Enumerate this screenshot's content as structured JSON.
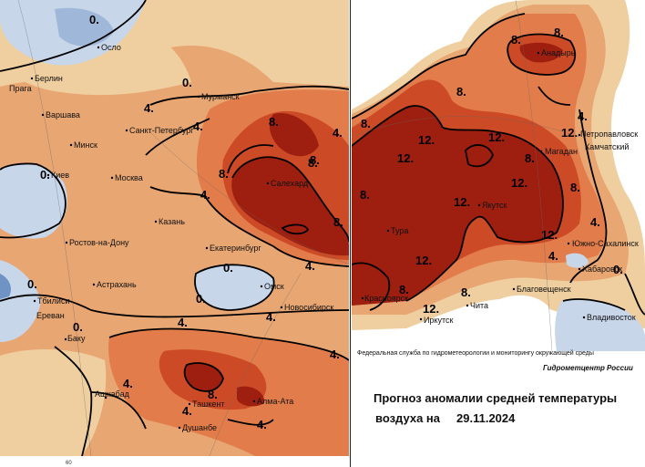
{
  "left_map": {
    "cities": [
      "Осло",
      "Берлин",
      "Прага",
      "Варшава",
      "Минск",
      "Киев",
      "Москва",
      "Санкт-Петербург",
      "Мурманск",
      "Салехард",
      "Казань",
      "Екатеринбург",
      "Ростов-на-Дону",
      "Астрахань",
      "Тбилиси",
      "Ереван",
      "Баку",
      "Омск",
      "Новосибирск",
      "Ашхабад",
      "Ташкент",
      "Алма-Ата",
      "Душанбе"
    ],
    "isoline_labels": [
      "0.",
      "0.",
      "4.",
      "4.",
      "8.",
      "8.",
      "4.",
      "8.",
      "4.",
      "0.",
      "0.",
      "0.",
      "4.",
      "4.",
      "4.",
      "4.",
      "8.",
      "8.",
      "4.",
      "0.",
      "4.",
      "8.",
      "4.",
      "0."
    ],
    "grid_label": "60"
  },
  "right_map": {
    "cities": [
      "Анадырь",
      "Петропавловск",
      "Камчатский",
      "Магадан",
      "Якутск",
      "Тура",
      "Южно-Сахалинск",
      "Хабаровск",
      "Красноярск",
      "Благовещенск",
      "Иркутск",
      "Чита",
      "Владивосток"
    ],
    "isoline_labels": [
      "8.",
      "8.",
      "8.",
      "12.",
      "12.",
      "8.",
      "12.",
      "12.",
      "12.",
      "8.",
      "12.",
      "8.",
      "12.",
      "8.",
      "12.",
      "8.",
      "12.",
      "4.",
      "4.",
      "0.",
      "4.",
      "8."
    ]
  },
  "footer": {
    "agency": "Федеральная служба по гидрометеорологии и мониторингу окружающей среды",
    "center": "Гидрометцентр России"
  },
  "title": {
    "line1": "Прогноз аномалии средней температуры",
    "line2": "воздуха на",
    "date": "29.11.2024"
  },
  "colors": {
    "cold_light": "#c8d6ea",
    "cold_mid": "#9fb8d9",
    "neutral": "#efcf9f",
    "warm1": "#e8a673",
    "warm2": "#e27c4b",
    "warm3": "#cc4a25",
    "warm4": "#9e1f10"
  }
}
